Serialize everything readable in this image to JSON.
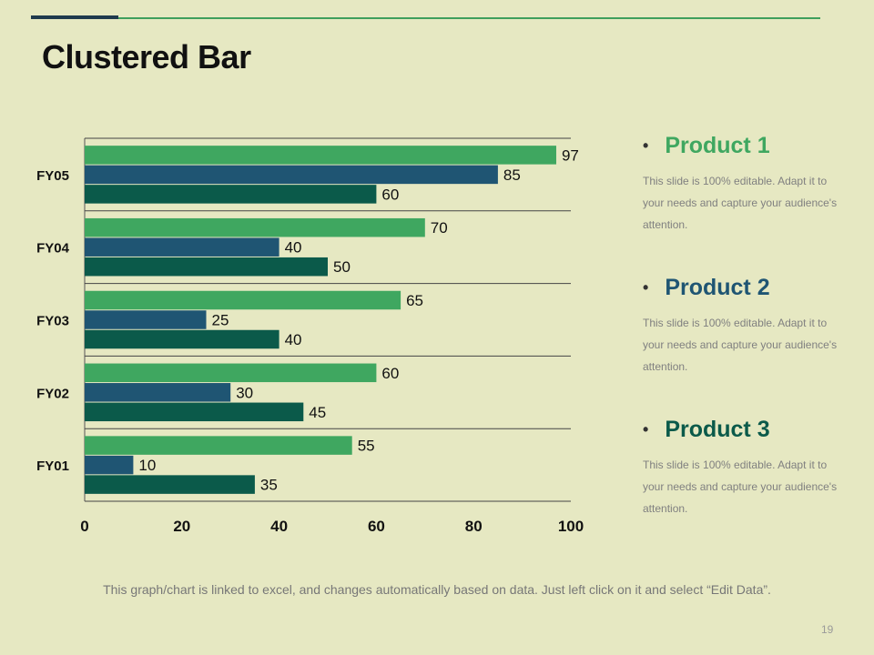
{
  "slide": {
    "title": "Clustered Bar",
    "footer_note": "This graph/chart is linked to excel, and changes automatically  based on data. Just left click on it and select “Edit Data”.",
    "page_number": "19"
  },
  "legend": [
    {
      "name": "Product 1",
      "color": "#3fa760",
      "description": "This slide is 100% editable. Adapt it to your needs and capture your audience's attention."
    },
    {
      "name": "Product 2",
      "color": "#1f5573",
      "description": "This slide is 100% editable. Adapt it to your needs and capture your audience's attention."
    },
    {
      "name": "Product 3",
      "color": "#0b5a4a",
      "description": "This slide is 100% editable. Adapt it to your needs and capture your audience's attention."
    }
  ],
  "chart_data": {
    "type": "bar",
    "orientation": "horizontal",
    "title": "Clustered Bar",
    "categories": [
      "FY01",
      "FY02",
      "FY03",
      "FY04",
      "FY05"
    ],
    "series": [
      {
        "name": "Product 1",
        "color": "#3fa760",
        "values": [
          55,
          60,
          65,
          70,
          97
        ]
      },
      {
        "name": "Product 2",
        "color": "#1f5573",
        "values": [
          10,
          30,
          25,
          40,
          85
        ]
      },
      {
        "name": "Product 3",
        "color": "#0b5a4a",
        "values": [
          35,
          45,
          40,
          50,
          60
        ]
      }
    ],
    "xlim": [
      0,
      100
    ],
    "x_ticks": [
      "0",
      "20",
      "40",
      "60",
      "80",
      "100"
    ],
    "grid": "horizontal category separators"
  }
}
